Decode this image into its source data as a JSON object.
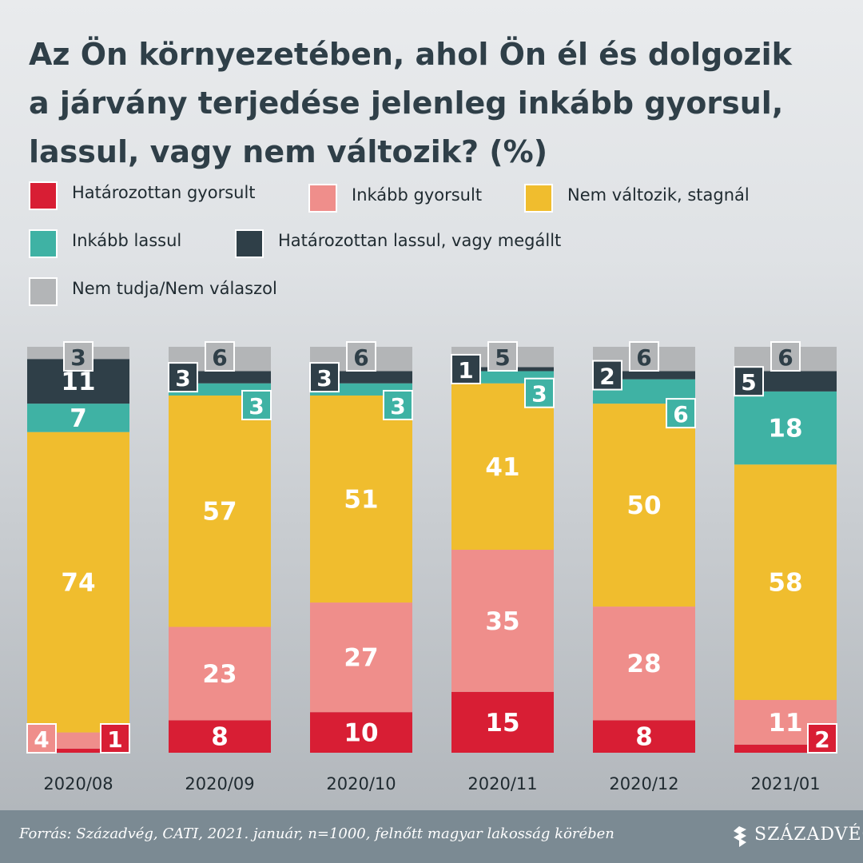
{
  "title": "Az Ön környezetében, ahol Ön él és dolgozik\na járvány terjedése jelenleg inkább gyorsul,\nlassul, vagy nem változik? (%)",
  "colors": {
    "hat_gyorsult": "#d81e34",
    "inkabb_gyorsult": "#ef8e8b",
    "nem_valtozik": "#f0bd2e",
    "inkabb_lassul": "#3fb2a4",
    "hat_lassul": "#2f3f48",
    "nem_tudja": "#b3b5b7"
  },
  "chart_data": {
    "type": "bar",
    "stacked": true,
    "categories": [
      "2020/08",
      "2020/09",
      "2020/10",
      "2020/11",
      "2020/12",
      "2021/01"
    ],
    "series": [
      {
        "name": "Határozottan gyorsult",
        "key": "hat_gyorsult",
        "values": [
          1,
          8,
          10,
          15,
          8,
          2
        ]
      },
      {
        "name": "Inkább gyorsult",
        "key": "inkabb_gyorsult",
        "values": [
          4,
          23,
          27,
          35,
          28,
          11
        ]
      },
      {
        "name": "Nem változik, stagnál",
        "key": "nem_valtozik",
        "values": [
          74,
          57,
          51,
          41,
          50,
          58
        ]
      },
      {
        "name": "Inkább lassul",
        "key": "inkabb_lassul",
        "values": [
          7,
          3,
          3,
          3,
          6,
          18
        ]
      },
      {
        "name": "Határozottan lassul, vagy megállt",
        "key": "hat_lassul",
        "values": [
          11,
          3,
          3,
          1,
          2,
          5
        ]
      },
      {
        "name": "Nem tudja/Nem válaszol",
        "key": "nem_tudja",
        "values": [
          3,
          6,
          6,
          5,
          6,
          6
        ]
      }
    ],
    "ylim": [
      0,
      100
    ],
    "legend_position": "top"
  },
  "source": "Forrás: Századvég, CATI, 2021. január, n=1000, felnőtt magyar lakosság körében",
  "brand": "SZÁZADVÉG"
}
